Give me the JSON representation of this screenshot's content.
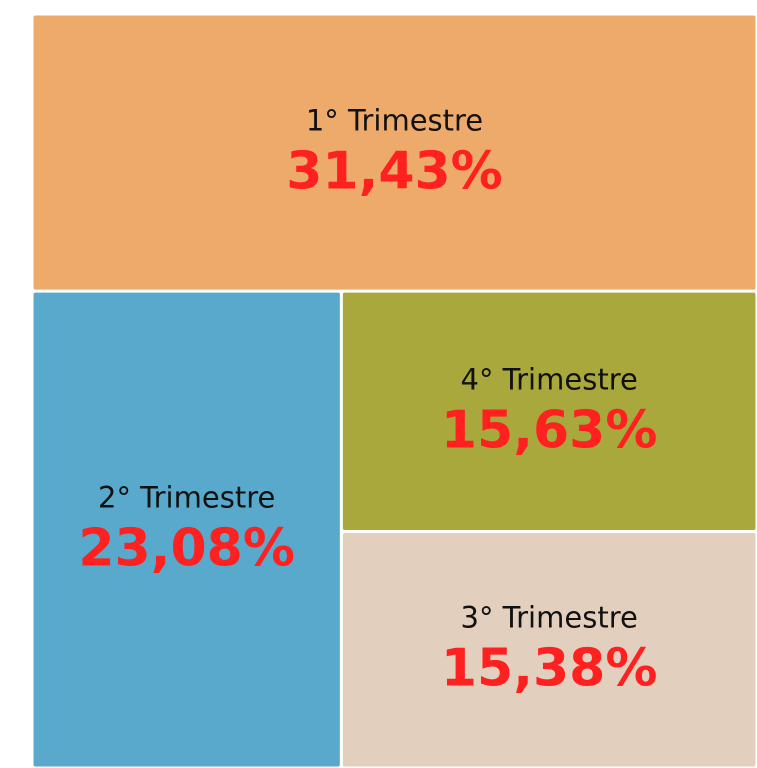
{
  "chart_data": {
    "type": "treemap",
    "categories": [
      "1° Trimestre",
      "2° Trimestre",
      "4° Trimestre",
      "3° Trimestre"
    ],
    "values": [
      31.43,
      23.08,
      15.63,
      15.38
    ],
    "value_labels": [
      "31,43%",
      "23,08%",
      "15,63%",
      "15,38%"
    ],
    "colors": [
      "#eeaa6a",
      "#58a9cb",
      "#a8a83c",
      "#e2cfbe"
    ]
  }
}
